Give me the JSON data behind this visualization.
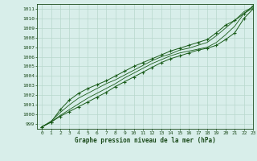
{
  "title": "Graphe pression niveau de la mer (hPa)",
  "xlim": [
    -0.5,
    23
  ],
  "ylim": [
    998.5,
    1011.5
  ],
  "yticks": [
    999,
    1000,
    1001,
    1002,
    1003,
    1004,
    1005,
    1006,
    1007,
    1008,
    1009,
    1010,
    1011
  ],
  "xticks": [
    0,
    1,
    2,
    3,
    4,
    5,
    6,
    7,
    8,
    9,
    10,
    11,
    12,
    13,
    14,
    15,
    16,
    17,
    18,
    19,
    20,
    21,
    22,
    23
  ],
  "bg_color": "#d8eeea",
  "grid_color": "#b8d8cc",
  "line_color": "#1a5c1a",
  "marker_color": "#1a5c1a",
  "label_color": "#1a4a1a",
  "series": [
    [
      998.7,
      999.2,
      999.8,
      1000.3,
      1000.8,
      1001.3,
      1001.8,
      1002.3,
      1002.9,
      1003.4,
      1003.9,
      1004.4,
      1004.9,
      1005.4,
      1005.8,
      1006.1,
      1006.4,
      1006.7,
      1006.9,
      1007.2,
      1007.8,
      1008.5,
      1010.0,
      1011.0
    ],
    [
      998.7,
      999.2,
      999.9,
      1000.5,
      1001.1,
      1001.7,
      1002.2,
      1002.7,
      1003.2,
      1003.8,
      1004.3,
      1004.8,
      1005.3,
      1005.7,
      1006.1,
      1006.4,
      1006.6,
      1006.8,
      1007.0,
      1007.5,
      1008.3,
      1009.2,
      1010.5,
      1011.1
    ],
    [
      998.7,
      999.3,
      1000.2,
      1001.0,
      1001.7,
      1002.2,
      1002.7,
      1003.2,
      1003.6,
      1004.1,
      1004.6,
      1005.1,
      1005.6,
      1006.0,
      1006.3,
      1006.7,
      1006.9,
      1007.2,
      1007.5,
      1008.2,
      1009.0,
      1009.8,
      1010.7,
      1011.2
    ],
    [
      998.7,
      999.2,
      1000.5,
      1001.5,
      1002.2,
      1002.7,
      1003.1,
      1003.5,
      1004.0,
      1004.5,
      1005.0,
      1005.4,
      1005.8,
      1006.2,
      1006.6,
      1006.9,
      1007.2,
      1007.5,
      1007.8,
      1008.5,
      1009.3,
      1009.8,
      1010.5,
      1011.3
    ]
  ],
  "marker_series": [
    0,
    3
  ]
}
